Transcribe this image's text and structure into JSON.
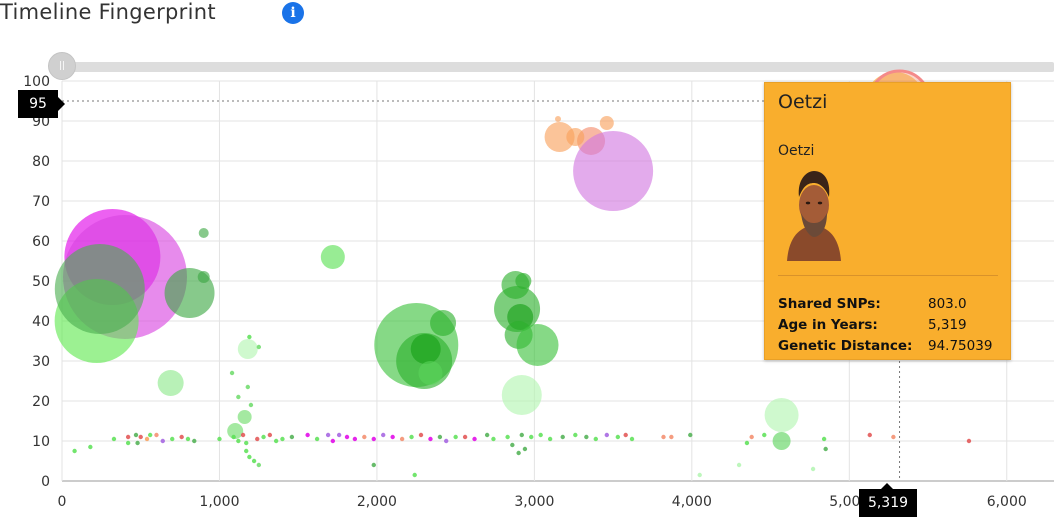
{
  "header": {
    "title": "Timeline Fingerprint",
    "info_icon": "info-icon",
    "info_glyph": "i"
  },
  "slider": {
    "handle_glyph": "||"
  },
  "cursor": {
    "x_value": 5319,
    "y_value": 95,
    "x_label": "5,319",
    "y_label": "95"
  },
  "tooltip": {
    "name": "Oetzi",
    "subtitle": "Oetzi",
    "fields": [
      {
        "label": "Shared SNPs:",
        "value": "803.0"
      },
      {
        "label": "Age in Years:",
        "value": "5,319"
      },
      {
        "label": "Genetic Distance:",
        "value": "94.75039"
      }
    ],
    "background_color": "#f9ae2d"
  },
  "chart_data": {
    "type": "scatter",
    "title": "",
    "xlabel": "",
    "ylabel": "",
    "xlim": [
      0,
      6300
    ],
    "ylim": [
      0,
      100
    ],
    "x_ticks": [
      0,
      1000,
      2000,
      3000,
      4000,
      5000,
      6000
    ],
    "x_tick_labels": [
      "0",
      "1,000",
      "2,000",
      "3,000",
      "4,000",
      "5,000",
      "6,000"
    ],
    "y_ticks": [
      0,
      10,
      20,
      30,
      40,
      50,
      60,
      70,
      80,
      90,
      100
    ],
    "y_tick_labels": [
      "0",
      "10",
      "20",
      "30",
      "40",
      "50",
      "60",
      "70",
      "80",
      "90",
      "100"
    ],
    "grid": true,
    "bubbles": [
      {
        "x": 320,
        "y": 56,
        "size": 48,
        "color": "#e100e8"
      },
      {
        "x": 400,
        "y": 51,
        "size": 62,
        "color": "#d944e0"
      },
      {
        "x": 220,
        "y": 40,
        "size": 42,
        "color": "#5fe84f"
      },
      {
        "x": 240,
        "y": 48,
        "size": 45,
        "color": "#4caf50"
      },
      {
        "x": 810,
        "y": 47,
        "size": 25,
        "color": "#3da843"
      },
      {
        "x": 900,
        "y": 62,
        "size": 5,
        "color": "#3da843"
      },
      {
        "x": 900,
        "y": 51,
        "size": 6,
        "color": "#3da843"
      },
      {
        "x": 690,
        "y": 24.5,
        "size": 13,
        "color": "#8de88a"
      },
      {
        "x": 1720,
        "y": 56,
        "size": 12,
        "color": "#59e053"
      },
      {
        "x": 1180,
        "y": 33,
        "size": 10,
        "color": "#b2f5b0"
      },
      {
        "x": 1160,
        "y": 16,
        "size": 7,
        "color": "#6cdb68"
      },
      {
        "x": 1100,
        "y": 12.5,
        "size": 8,
        "color": "#6cdb68"
      },
      {
        "x": 2250,
        "y": 34,
        "size": 42,
        "color": "#3bc23b"
      },
      {
        "x": 2300,
        "y": 30,
        "size": 28,
        "color": "#2bb02b"
      },
      {
        "x": 2310,
        "y": 33,
        "size": 15,
        "color": "#17a017"
      },
      {
        "x": 2420,
        "y": 39.5,
        "size": 13,
        "color": "#2bb02b"
      },
      {
        "x": 2340,
        "y": 27,
        "size": 12,
        "color": "#5bd35b"
      },
      {
        "x": 2880,
        "y": 49,
        "size": 14,
        "color": "#2bb02b"
      },
      {
        "x": 2890,
        "y": 43,
        "size": 23,
        "color": "#2bb02b"
      },
      {
        "x": 2910,
        "y": 41,
        "size": 13,
        "color": "#17a017"
      },
      {
        "x": 2900,
        "y": 36.5,
        "size": 14,
        "color": "#2bb02b"
      },
      {
        "x": 3020,
        "y": 34,
        "size": 21,
        "color": "#3bc23b"
      },
      {
        "x": 2930,
        "y": 50,
        "size": 8,
        "color": "#2bb02b"
      },
      {
        "x": 2920,
        "y": 21.5,
        "size": 20,
        "color": "#b2f5b0"
      },
      {
        "x": 3160,
        "y": 86,
        "size": 15,
        "color": "#f9a05a"
      },
      {
        "x": 3360,
        "y": 85,
        "size": 14,
        "color": "#f38b6a"
      },
      {
        "x": 3460,
        "y": 89.5,
        "size": 7,
        "color": "#f9a05a"
      },
      {
        "x": 3500,
        "y": 77.5,
        "size": 40,
        "color": "#d278e0"
      },
      {
        "x": 3260,
        "y": 86,
        "size": 9,
        "color": "#f9a05a"
      },
      {
        "x": 3150,
        "y": 90.5,
        "size": 3,
        "color": "#f9a05a"
      },
      {
        "x": 4570,
        "y": 16.5,
        "size": 17,
        "color": "#b2f5b0"
      },
      {
        "x": 4570,
        "y": 10,
        "size": 9,
        "color": "#5bd35b"
      },
      {
        "x": 5290,
        "y": 94.75,
        "size": 30,
        "color": "#f9ae2d"
      },
      {
        "x": 5120,
        "y": 91,
        "size": 22,
        "color": "#f9ae2d"
      },
      {
        "x": 5319,
        "y": 95,
        "size": 30,
        "color": "#f38b6a",
        "highlighted": true
      }
    ],
    "small_points": [
      {
        "x": 80,
        "y": 7.5,
        "color": "#59e053"
      },
      {
        "x": 180,
        "y": 8.5,
        "color": "#59e053"
      },
      {
        "x": 330,
        "y": 10.5,
        "color": "#59e053"
      },
      {
        "x": 420,
        "y": 11,
        "color": "#e25050"
      },
      {
        "x": 420,
        "y": 9.5,
        "color": "#59e053"
      },
      {
        "x": 470,
        "y": 11.5,
        "color": "#4caf50"
      },
      {
        "x": 480,
        "y": 9.5,
        "color": "#4caf50"
      },
      {
        "x": 500,
        "y": 11,
        "color": "#e25050"
      },
      {
        "x": 540,
        "y": 10.5,
        "color": "#f9a05a"
      },
      {
        "x": 560,
        "y": 11.5,
        "color": "#59e053"
      },
      {
        "x": 600,
        "y": 11.5,
        "color": "#f38b6a"
      },
      {
        "x": 640,
        "y": 10,
        "color": "#a25fe0"
      },
      {
        "x": 700,
        "y": 10.5,
        "color": "#59e053"
      },
      {
        "x": 760,
        "y": 11,
        "color": "#e25050"
      },
      {
        "x": 800,
        "y": 10.5,
        "color": "#59e053"
      },
      {
        "x": 840,
        "y": 10,
        "color": "#4caf50"
      },
      {
        "x": 1000,
        "y": 10.5,
        "color": "#59e053"
      },
      {
        "x": 1090,
        "y": 11,
        "color": "#59e053"
      },
      {
        "x": 1120,
        "y": 10,
        "color": "#59e053"
      },
      {
        "x": 1150,
        "y": 11.5,
        "color": "#e25050"
      },
      {
        "x": 1170,
        "y": 9.5,
        "color": "#59e053"
      },
      {
        "x": 1190,
        "y": 36,
        "color": "#59e053"
      },
      {
        "x": 1180,
        "y": 23.5,
        "color": "#6cdb68"
      },
      {
        "x": 1200,
        "y": 19,
        "color": "#6cdb68"
      },
      {
        "x": 1170,
        "y": 7.5,
        "color": "#59e053"
      },
      {
        "x": 1190,
        "y": 6,
        "color": "#59e053"
      },
      {
        "x": 1220,
        "y": 5,
        "color": "#59e053"
      },
      {
        "x": 1250,
        "y": 4,
        "color": "#6cdb68"
      },
      {
        "x": 1240,
        "y": 10.5,
        "color": "#e25050"
      },
      {
        "x": 1280,
        "y": 11,
        "color": "#59e053"
      },
      {
        "x": 1320,
        "y": 11.5,
        "color": "#e25050"
      },
      {
        "x": 1360,
        "y": 10,
        "color": "#59e053"
      },
      {
        "x": 1400,
        "y": 10.5,
        "color": "#59e053"
      },
      {
        "x": 1460,
        "y": 11,
        "color": "#4caf50"
      },
      {
        "x": 1560,
        "y": 11.5,
        "color": "#e000e8"
      },
      {
        "x": 1620,
        "y": 10.5,
        "color": "#59e053"
      },
      {
        "x": 1690,
        "y": 11.5,
        "color": "#a25fe0"
      },
      {
        "x": 1720,
        "y": 10,
        "color": "#e000e8"
      },
      {
        "x": 1760,
        "y": 11.5,
        "color": "#a25fe0"
      },
      {
        "x": 1810,
        "y": 11,
        "color": "#e000e8"
      },
      {
        "x": 1860,
        "y": 10.5,
        "color": "#e000e8"
      },
      {
        "x": 1920,
        "y": 11,
        "color": "#f38b6a"
      },
      {
        "x": 1980,
        "y": 10.5,
        "color": "#e000e8"
      },
      {
        "x": 2040,
        "y": 11.5,
        "color": "#a25fe0"
      },
      {
        "x": 2100,
        "y": 11,
        "color": "#e000e8"
      },
      {
        "x": 2160,
        "y": 10.5,
        "color": "#f38b6a"
      },
      {
        "x": 2220,
        "y": 11,
        "color": "#59e053"
      },
      {
        "x": 2280,
        "y": 11.5,
        "color": "#e25050"
      },
      {
        "x": 2340,
        "y": 10.5,
        "color": "#e000e8"
      },
      {
        "x": 2400,
        "y": 11,
        "color": "#4caf50"
      },
      {
        "x": 2440,
        "y": 10,
        "color": "#a25fe0"
      },
      {
        "x": 2500,
        "y": 11,
        "color": "#59e053"
      },
      {
        "x": 2560,
        "y": 11,
        "color": "#e25050"
      },
      {
        "x": 2620,
        "y": 10.5,
        "color": "#e000e8"
      },
      {
        "x": 2700,
        "y": 11.5,
        "color": "#4caf50"
      },
      {
        "x": 2740,
        "y": 10.5,
        "color": "#59e053"
      },
      {
        "x": 2860,
        "y": 9,
        "color": "#4caf50"
      },
      {
        "x": 2900,
        "y": 7,
        "color": "#4caf50"
      },
      {
        "x": 2940,
        "y": 8,
        "color": "#4caf50"
      },
      {
        "x": 2830,
        "y": 11,
        "color": "#59e053"
      },
      {
        "x": 2920,
        "y": 11.5,
        "color": "#4caf50"
      },
      {
        "x": 2980,
        "y": 11,
        "color": "#59e053"
      },
      {
        "x": 3040,
        "y": 11.5,
        "color": "#59e053"
      },
      {
        "x": 3100,
        "y": 10.5,
        "color": "#59e053"
      },
      {
        "x": 3180,
        "y": 11,
        "color": "#4caf50"
      },
      {
        "x": 3260,
        "y": 11.5,
        "color": "#59e053"
      },
      {
        "x": 3330,
        "y": 11,
        "color": "#4caf50"
      },
      {
        "x": 3390,
        "y": 10.5,
        "color": "#59e053"
      },
      {
        "x": 3460,
        "y": 11.5,
        "color": "#a25fe0"
      },
      {
        "x": 3530,
        "y": 11,
        "color": "#59e053"
      },
      {
        "x": 3580,
        "y": 11.5,
        "color": "#e25050"
      },
      {
        "x": 3620,
        "y": 10.5,
        "color": "#59e053"
      },
      {
        "x": 3820,
        "y": 11,
        "color": "#f38b6a"
      },
      {
        "x": 3870,
        "y": 11,
        "color": "#f38b6a"
      },
      {
        "x": 3990,
        "y": 11.5,
        "color": "#4caf50"
      },
      {
        "x": 4050,
        "y": 1.5,
        "color": "#b2f5b0"
      },
      {
        "x": 4350,
        "y": 9.5,
        "color": "#59e053"
      },
      {
        "x": 4380,
        "y": 11,
        "color": "#f38b6a"
      },
      {
        "x": 4300,
        "y": 4,
        "color": "#b2f5b0"
      },
      {
        "x": 4460,
        "y": 11.5,
        "color": "#59e053"
      },
      {
        "x": 4840,
        "y": 10.5,
        "color": "#59e053"
      },
      {
        "x": 4850,
        "y": 8,
        "color": "#4caf50"
      },
      {
        "x": 4770,
        "y": 3,
        "color": "#b2f5b0"
      },
      {
        "x": 5130,
        "y": 11.5,
        "color": "#e25050"
      },
      {
        "x": 5280,
        "y": 11,
        "color": "#f38b6a"
      },
      {
        "x": 5760,
        "y": 10,
        "color": "#e25050"
      },
      {
        "x": 1980,
        "y": 4,
        "color": "#4caf50"
      },
      {
        "x": 2240,
        "y": 1.5,
        "color": "#59e053"
      },
      {
        "x": 1080,
        "y": 27,
        "color": "#6cdb68"
      },
      {
        "x": 1120,
        "y": 21,
        "color": "#6cdb68"
      },
      {
        "x": 1250,
        "y": 33.5,
        "color": "#6cdb68"
      }
    ]
  }
}
